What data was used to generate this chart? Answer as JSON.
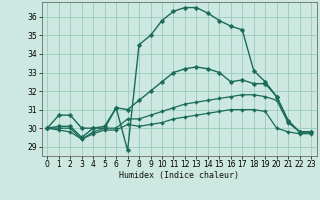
{
  "title": "",
  "xlabel": "Humidex (Indice chaleur)",
  "background_color": "#cce8e0",
  "grid_color": "#99ccbb",
  "line_color": "#1a6b5a",
  "x_ticks": [
    0,
    1,
    2,
    3,
    4,
    5,
    6,
    7,
    8,
    9,
    10,
    11,
    12,
    13,
    14,
    15,
    16,
    17,
    18,
    19,
    20,
    21,
    22,
    23
  ],
  "y_ticks": [
    29,
    30,
    31,
    32,
    33,
    34,
    35,
    36
  ],
  "ylim": [
    28.5,
    36.8
  ],
  "xlim": [
    -0.5,
    23.5
  ],
  "series": [
    {
      "x": [
        0,
        1,
        2,
        3,
        4,
        5,
        6,
        7,
        8,
        9,
        10,
        11,
        12,
        13,
        14,
        15,
        16,
        17,
        18,
        19,
        20,
        21,
        22,
        23
      ],
      "y": [
        30.0,
        30.7,
        30.7,
        30.0,
        30.0,
        30.0,
        31.1,
        28.8,
        34.5,
        35.0,
        35.8,
        36.3,
        36.5,
        36.5,
        36.2,
        35.8,
        35.5,
        35.3,
        33.1,
        32.5,
        31.7,
        30.4,
        29.8,
        29.8
      ],
      "lw": 1.0,
      "ms": 2.5
    },
    {
      "x": [
        0,
        1,
        2,
        3,
        4,
        5,
        6,
        7,
        8,
        9,
        10,
        11,
        12,
        13,
        14,
        15,
        16,
        17,
        18,
        19,
        20,
        21,
        22,
        23
      ],
      "y": [
        30.0,
        30.1,
        30.1,
        29.5,
        30.0,
        30.1,
        31.1,
        31.0,
        31.5,
        32.0,
        32.5,
        33.0,
        33.2,
        33.3,
        33.2,
        33.0,
        32.5,
        32.6,
        32.4,
        32.4,
        31.7,
        30.4,
        29.8,
        29.8
      ],
      "lw": 1.0,
      "ms": 2.5
    },
    {
      "x": [
        0,
        1,
        2,
        3,
        4,
        5,
        6,
        7,
        8,
        9,
        10,
        11,
        12,
        13,
        14,
        15,
        16,
        17,
        18,
        19,
        20,
        21,
        22,
        23
      ],
      "y": [
        30.0,
        30.0,
        30.0,
        29.4,
        29.8,
        30.0,
        30.0,
        30.5,
        30.5,
        30.7,
        30.9,
        31.1,
        31.3,
        31.4,
        31.5,
        31.6,
        31.7,
        31.8,
        31.8,
        31.7,
        31.5,
        30.3,
        29.8,
        29.8
      ],
      "lw": 0.9,
      "ms": 2.0
    },
    {
      "x": [
        0,
        1,
        2,
        3,
        4,
        5,
        6,
        7,
        8,
        9,
        10,
        11,
        12,
        13,
        14,
        15,
        16,
        17,
        18,
        19,
        20,
        21,
        22,
        23
      ],
      "y": [
        30.0,
        29.9,
        29.8,
        29.4,
        29.7,
        29.9,
        29.9,
        30.2,
        30.1,
        30.2,
        30.3,
        30.5,
        30.6,
        30.7,
        30.8,
        30.9,
        31.0,
        31.0,
        31.0,
        30.9,
        30.0,
        29.8,
        29.7,
        29.7
      ],
      "lw": 0.9,
      "ms": 2.0
    }
  ]
}
